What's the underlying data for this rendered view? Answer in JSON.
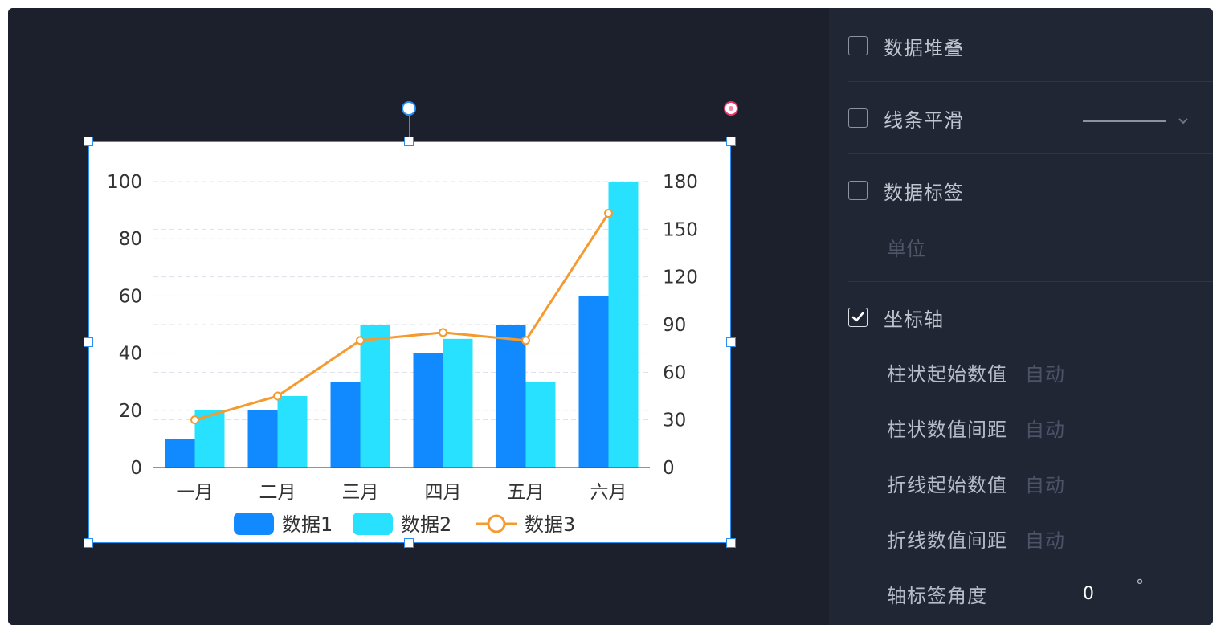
{
  "panel": {
    "stack_label": "数据堆叠",
    "smooth_label": "线条平滑",
    "data_label_label": "数据标签",
    "unit_placeholder": "单位",
    "axis_label": "坐标轴",
    "axis_checked": true,
    "bar_start_label": "柱状起始数值",
    "bar_start_value": "自动",
    "bar_interval_label": "柱状数值间距",
    "bar_interval_value": "自动",
    "line_start_label": "折线起始数值",
    "line_start_value": "自动",
    "line_interval_label": "折线数值间距",
    "line_interval_value": "自动",
    "tick_angle_label": "轴标签角度",
    "tick_angle_value": "0",
    "tick_angle_unit": "°"
  },
  "colors": {
    "series1": "#1189ff",
    "series2": "#27e1fe",
    "series3": "#f59a2f",
    "selection": "#2b8ff0",
    "delete": "#e8386a"
  },
  "icons": [
    "rotate-handle-icon",
    "delete-handle-icon",
    "checkmark-icon",
    "chevron-down-icon"
  ],
  "chart_data": {
    "type": "bar",
    "categories": [
      "一月",
      "二月",
      "三月",
      "四月",
      "五月",
      "六月"
    ],
    "series": [
      {
        "name": "数据1",
        "type": "bar",
        "axis": "left",
        "values": [
          10,
          20,
          30,
          40,
          50,
          60
        ]
      },
      {
        "name": "数据2",
        "type": "bar",
        "axis": "left",
        "values": [
          20,
          25,
          50,
          45,
          30,
          100
        ]
      },
      {
        "name": "数据3",
        "type": "line",
        "axis": "right",
        "values": [
          30,
          45,
          80,
          85,
          80,
          160
        ]
      }
    ],
    "y_left": {
      "ylim": [
        0,
        100
      ],
      "ticks": [
        0,
        20,
        40,
        60,
        80,
        100
      ]
    },
    "y_right": {
      "ylim": [
        0,
        180
      ],
      "ticks": [
        0,
        30,
        60,
        90,
        120,
        150,
        180
      ]
    },
    "legend_position": "bottom",
    "grid": true
  }
}
